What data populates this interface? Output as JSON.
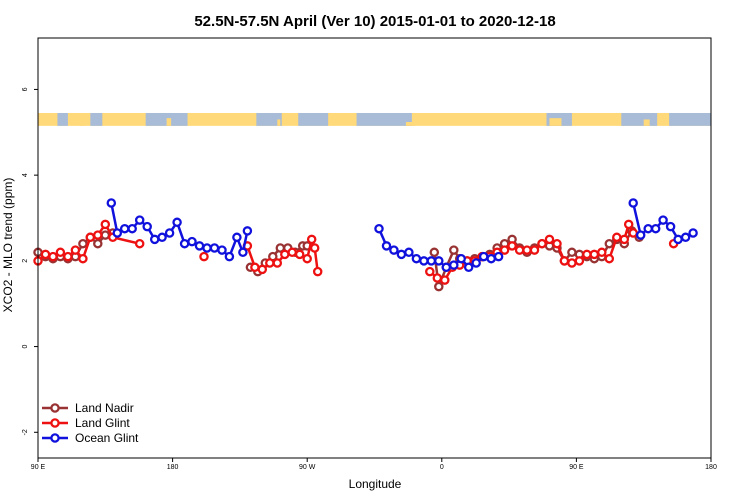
{
  "chart_data": {
    "type": "line",
    "title": "52.5N-57.5N April (Ver 10)   2015-01-01 to 2020-12-18",
    "xlabel": "Longitude",
    "ylabel": "XCO2 - MLO trend (ppm)",
    "xlim": [
      90,
      540
    ],
    "ylim": [
      -2.6,
      7.2
    ],
    "x_ticks": [
      {
        "value": 90,
        "label": "90 E"
      },
      {
        "value": 180,
        "label": "180"
      },
      {
        "value": 270,
        "label": "90 W"
      },
      {
        "value": 360,
        "label": "0"
      },
      {
        "value": 450,
        "label": "90 E"
      },
      {
        "value": 540,
        "label": "180"
      }
    ],
    "y_ticks": [
      {
        "value": -2,
        "label": "-2"
      },
      {
        "value": 0,
        "label": "0"
      },
      {
        "value": 2,
        "label": "2"
      },
      {
        "value": 4,
        "label": "4"
      },
      {
        "value": 6,
        "label": "6"
      }
    ],
    "legend_position": "bottom-left",
    "land_ocean_band": {
      "y_range": [
        5.15,
        5.45
      ],
      "land_color": "#ffd97a",
      "ocean_color": "#a8bcd8"
    },
    "series": [
      {
        "name": "Land Nadir",
        "color": "#993333",
        "segments": [
          [
            [
              90,
              2.2
            ],
            [
              95,
              2.1
            ],
            [
              100,
              2.05
            ],
            [
              105,
              2.1
            ],
            [
              110,
              2.05
            ],
            [
              115,
              2.1
            ],
            [
              120,
              2.4
            ],
            [
              125,
              2.55
            ],
            [
              130,
              2.4
            ],
            [
              135,
              2.6
            ],
            [
              140,
              2.65
            ]
          ],
          [
            [
              232,
              1.85
            ],
            [
              237,
              1.75
            ],
            [
              242,
              1.95
            ],
            [
              247,
              2.1
            ],
            [
              252,
              2.3
            ],
            [
              257,
              2.3
            ],
            [
              262,
              2.2
            ],
            [
              267,
              2.35
            ],
            [
              270,
              2.35
            ]
          ],
          [
            [
              355,
              2.2
            ],
            [
              358,
              1.4
            ],
            [
              363,
              1.85
            ],
            [
              368,
              2.25
            ],
            [
              372,
              2.05
            ],
            [
              377,
              2.0
            ],
            [
              382,
              2.05
            ],
            [
              387,
              2.1
            ],
            [
              392,
              2.15
            ],
            [
              397,
              2.3
            ],
            [
              402,
              2.4
            ],
            [
              407,
              2.5
            ],
            [
              412,
              2.3
            ],
            [
              417,
              2.2
            ],
            [
              422,
              2.3
            ],
            [
              427,
              2.4
            ],
            [
              432,
              2.35
            ],
            [
              437,
              2.3
            ],
            [
              442,
              2.0
            ],
            [
              447,
              2.2
            ],
            [
              452,
              2.15
            ],
            [
              457,
              2.1
            ],
            [
              462,
              2.05
            ],
            [
              467,
              2.1
            ],
            [
              472,
              2.4
            ],
            [
              477,
              2.5
            ],
            [
              482,
              2.4
            ],
            [
              487,
              2.7
            ],
            [
              492,
              2.55
            ]
          ]
        ]
      },
      {
        "name": "Land Glint",
        "color": "#ee1111",
        "segments": [
          [
            [
              90,
              2.0
            ],
            [
              95,
              2.15
            ],
            [
              100,
              2.1
            ],
            [
              105,
              2.2
            ],
            [
              110,
              2.1
            ],
            [
              115,
              2.25
            ],
            [
              120,
              2.05
            ],
            [
              125,
              2.55
            ],
            [
              130,
              2.6
            ],
            [
              135,
              2.85
            ],
            [
              140,
              2.55
            ],
            [
              158,
              2.4
            ]
          ],
          [
            [
              201,
              2.1
            ]
          ],
          [
            [
              230,
              2.35
            ],
            [
              235,
              1.85
            ],
            [
              240,
              1.8
            ],
            [
              245,
              1.95
            ],
            [
              250,
              1.95
            ],
            [
              255,
              2.15
            ],
            [
              260,
              2.2
            ],
            [
              265,
              2.15
            ],
            [
              270,
              2.05
            ],
            [
              273,
              2.5
            ],
            [
              275,
              2.3
            ],
            [
              277,
              1.75
            ]
          ],
          [
            [
              352,
              1.75
            ],
            [
              357,
              1.6
            ],
            [
              362,
              1.55
            ],
            [
              367,
              1.85
            ],
            [
              372,
              1.9
            ],
            [
              377,
              2.0
            ],
            [
              382,
              2.0
            ],
            [
              387,
              2.1
            ],
            [
              392,
              2.1
            ],
            [
              397,
              2.2
            ],
            [
              402,
              2.25
            ],
            [
              407,
              2.35
            ],
            [
              412,
              2.25
            ],
            [
              417,
              2.25
            ],
            [
              422,
              2.25
            ],
            [
              427,
              2.4
            ],
            [
              432,
              2.5
            ],
            [
              437,
              2.4
            ],
            [
              442,
              2.0
            ],
            [
              447,
              1.95
            ],
            [
              452,
              2.0
            ],
            [
              457,
              2.15
            ],
            [
              462,
              2.15
            ],
            [
              467,
              2.2
            ],
            [
              472,
              2.05
            ],
            [
              477,
              2.55
            ],
            [
              482,
              2.5
            ],
            [
              485,
              2.85
            ],
            [
              488,
              2.65
            ]
          ],
          [
            [
              515,
              2.4
            ]
          ]
        ]
      },
      {
        "name": "Ocean Glint",
        "color": "#1111dd",
        "segments": [
          [
            [
              139,
              3.35
            ],
            [
              143,
              2.65
            ],
            [
              148,
              2.75
            ],
            [
              153,
              2.75
            ],
            [
              158,
              2.95
            ],
            [
              163,
              2.8
            ],
            [
              168,
              2.5
            ],
            [
              173,
              2.55
            ],
            [
              178,
              2.65
            ],
            [
              183,
              2.9
            ],
            [
              188,
              2.4
            ],
            [
              193,
              2.45
            ],
            [
              198,
              2.35
            ],
            [
              203,
              2.3
            ],
            [
              208,
              2.3
            ],
            [
              213,
              2.25
            ],
            [
              218,
              2.1
            ],
            [
              223,
              2.55
            ],
            [
              227,
              2.2
            ],
            [
              230,
              2.7
            ]
          ],
          [
            [
              318,
              2.75
            ],
            [
              323,
              2.35
            ],
            [
              328,
              2.25
            ],
            [
              333,
              2.15
            ],
            [
              338,
              2.2
            ],
            [
              343,
              2.05
            ],
            [
              348,
              2.0
            ],
            [
              353,
              2.0
            ],
            [
              358,
              2.0
            ],
            [
              363,
              1.85
            ],
            [
              368,
              1.9
            ],
            [
              373,
              2.05
            ],
            [
              378,
              1.85
            ],
            [
              383,
              1.95
            ],
            [
              388,
              2.1
            ],
            [
              393,
              2.05
            ],
            [
              398,
              2.1
            ]
          ],
          [
            [
              488,
              3.35
            ],
            [
              493,
              2.6
            ],
            [
              498,
              2.75
            ],
            [
              503,
              2.75
            ],
            [
              508,
              2.95
            ],
            [
              513,
              2.8
            ],
            [
              518,
              2.5
            ],
            [
              523,
              2.55
            ],
            [
              528,
              2.65
            ]
          ]
        ]
      }
    ]
  }
}
